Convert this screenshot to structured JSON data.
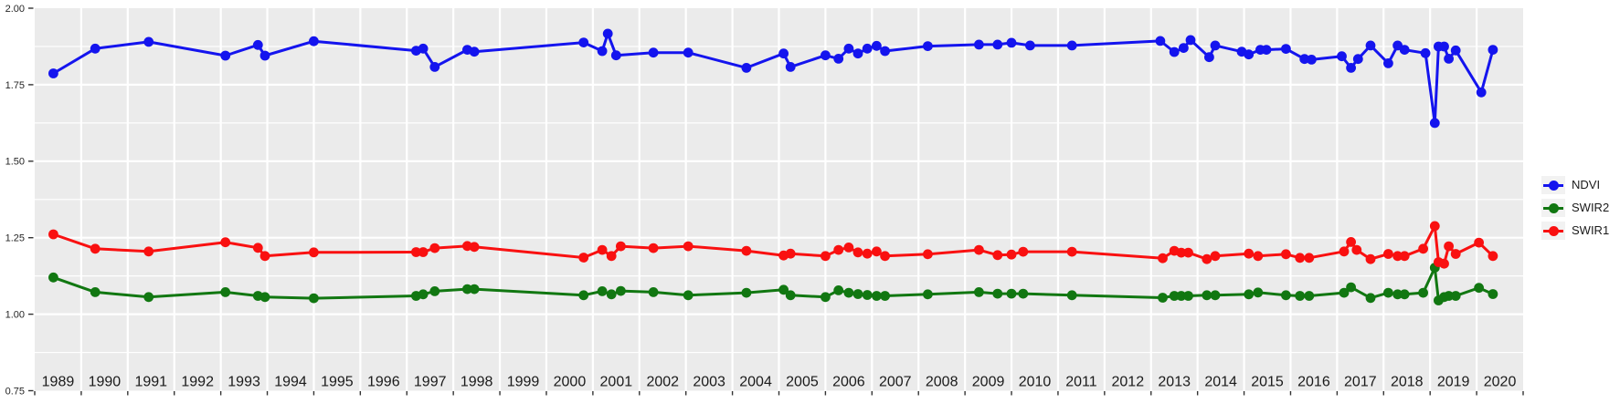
{
  "chart_data": {
    "type": "line",
    "title": "",
    "xlabel": "",
    "ylabel": "",
    "xlim": [
      1989,
      2021
    ],
    "ylim": [
      0.75,
      2.0
    ],
    "x_tick_labels": [
      "1989",
      "1990",
      "1991",
      "1992",
      "1993",
      "1994",
      "1995",
      "1996",
      "1997",
      "1998",
      "1999",
      "2000",
      "2001",
      "2002",
      "2003",
      "2004",
      "2005",
      "2006",
      "2007",
      "2008",
      "2009",
      "2010",
      "2011",
      "2012",
      "2013",
      "2014",
      "2015",
      "2016",
      "2017",
      "2018",
      "2019",
      "2020"
    ],
    "y_ticks": [
      2.0,
      1.75,
      1.5,
      1.25,
      1.0,
      0.75
    ],
    "y_tick_labels": [
      "2.00",
      "1.75",
      "1.50",
      "1.25",
      "1.00",
      "0.75"
    ],
    "grid": {
      "major": true,
      "minor_y": true,
      "grid_color": "#ffffff",
      "panel_bg": "#ebebeb"
    },
    "legend_position": "right",
    "axis_text_color": "#262626",
    "tick_color": "#333333",
    "legend_key_bg": "#f2f2f2",
    "series": [
      {
        "name": "NDVI",
        "color": "#1414ee",
        "points": [
          [
            1989.4,
            1.787
          ],
          [
            1990.3,
            1.868
          ],
          [
            1991.45,
            1.89
          ],
          [
            1993.1,
            1.845
          ],
          [
            1993.8,
            1.88
          ],
          [
            1993.95,
            1.845
          ],
          [
            1995.0,
            1.892
          ],
          [
            1997.2,
            1.861
          ],
          [
            1997.35,
            1.868
          ],
          [
            1997.6,
            1.808
          ],
          [
            1998.3,
            1.864
          ],
          [
            1998.45,
            1.858
          ],
          [
            2000.8,
            1.888
          ],
          [
            2001.2,
            1.86
          ],
          [
            2001.32,
            1.917
          ],
          [
            2001.5,
            1.846
          ],
          [
            2002.3,
            1.855
          ],
          [
            2003.05,
            1.855
          ],
          [
            2004.3,
            1.805
          ],
          [
            2005.1,
            1.852
          ],
          [
            2005.25,
            1.808
          ],
          [
            2006.0,
            1.846
          ],
          [
            2006.28,
            1.835
          ],
          [
            2006.5,
            1.868
          ],
          [
            2006.7,
            1.852
          ],
          [
            2006.9,
            1.868
          ],
          [
            2007.1,
            1.877
          ],
          [
            2007.28,
            1.86
          ],
          [
            2008.2,
            1.876
          ],
          [
            2009.3,
            1.881
          ],
          [
            2009.7,
            1.881
          ],
          [
            2010.0,
            1.887
          ],
          [
            2010.4,
            1.878
          ],
          [
            2011.3,
            1.878
          ],
          [
            2013.2,
            1.893
          ],
          [
            2013.5,
            1.857
          ],
          [
            2013.7,
            1.87
          ],
          [
            2013.85,
            1.896
          ],
          [
            2014.25,
            1.84
          ],
          [
            2014.38,
            1.878
          ],
          [
            2014.95,
            1.858
          ],
          [
            2015.1,
            1.849
          ],
          [
            2015.35,
            1.864
          ],
          [
            2015.48,
            1.864
          ],
          [
            2015.9,
            1.867
          ],
          [
            2016.3,
            1.834
          ],
          [
            2016.45,
            1.832
          ],
          [
            2017.1,
            1.843
          ],
          [
            2017.3,
            1.805
          ],
          [
            2017.45,
            1.834
          ],
          [
            2017.72,
            1.878
          ],
          [
            2018.1,
            1.82
          ],
          [
            2018.3,
            1.878
          ],
          [
            2018.45,
            1.864
          ],
          [
            2018.9,
            1.853
          ],
          [
            2019.1,
            1.625
          ],
          [
            2019.18,
            1.875
          ],
          [
            2019.3,
            1.875
          ],
          [
            2019.4,
            1.835
          ],
          [
            2019.55,
            1.862
          ],
          [
            2020.1,
            1.725
          ],
          [
            2020.35,
            1.864
          ]
        ]
      },
      {
        "name": "SWIR2",
        "color": "#117711",
        "points": [
          [
            1989.4,
            1.12
          ],
          [
            1990.3,
            1.072
          ],
          [
            1991.45,
            1.056
          ],
          [
            1993.1,
            1.072
          ],
          [
            1993.8,
            1.06
          ],
          [
            1993.95,
            1.056
          ],
          [
            1995.0,
            1.052
          ],
          [
            1997.2,
            1.06
          ],
          [
            1997.35,
            1.065
          ],
          [
            1997.6,
            1.075
          ],
          [
            1998.3,
            1.082
          ],
          [
            1998.45,
            1.082
          ],
          [
            2000.8,
            1.062
          ],
          [
            2001.2,
            1.075
          ],
          [
            2001.4,
            1.065
          ],
          [
            2001.6,
            1.076
          ],
          [
            2002.3,
            1.072
          ],
          [
            2003.05,
            1.062
          ],
          [
            2004.3,
            1.07
          ],
          [
            2005.1,
            1.08
          ],
          [
            2005.25,
            1.062
          ],
          [
            2006.0,
            1.056
          ],
          [
            2006.28,
            1.078
          ],
          [
            2006.5,
            1.07
          ],
          [
            2006.7,
            1.066
          ],
          [
            2006.9,
            1.063
          ],
          [
            2007.1,
            1.06
          ],
          [
            2007.28,
            1.06
          ],
          [
            2008.2,
            1.065
          ],
          [
            2009.3,
            1.072
          ],
          [
            2009.7,
            1.067
          ],
          [
            2010.0,
            1.067
          ],
          [
            2010.25,
            1.067
          ],
          [
            2011.3,
            1.062
          ],
          [
            2013.25,
            1.054
          ],
          [
            2013.5,
            1.06
          ],
          [
            2013.65,
            1.06
          ],
          [
            2013.8,
            1.06
          ],
          [
            2014.2,
            1.062
          ],
          [
            2014.38,
            1.062
          ],
          [
            2015.1,
            1.065
          ],
          [
            2015.3,
            1.071
          ],
          [
            2015.9,
            1.062
          ],
          [
            2016.2,
            1.06
          ],
          [
            2016.4,
            1.06
          ],
          [
            2017.15,
            1.07
          ],
          [
            2017.3,
            1.088
          ],
          [
            2017.72,
            1.053
          ],
          [
            2018.1,
            1.07
          ],
          [
            2018.3,
            1.065
          ],
          [
            2018.45,
            1.065
          ],
          [
            2018.85,
            1.07
          ],
          [
            2019.1,
            1.152
          ],
          [
            2019.18,
            1.045
          ],
          [
            2019.3,
            1.056
          ],
          [
            2019.4,
            1.06
          ],
          [
            2019.55,
            1.06
          ],
          [
            2020.05,
            1.086
          ],
          [
            2020.35,
            1.066
          ]
        ]
      },
      {
        "name": "SWIR1",
        "color": "#f91010",
        "points": [
          [
            1989.4,
            1.261
          ],
          [
            1990.3,
            1.214
          ],
          [
            1991.45,
            1.205
          ],
          [
            1993.1,
            1.235
          ],
          [
            1993.8,
            1.217
          ],
          [
            1993.95,
            1.19
          ],
          [
            1995.0,
            1.202
          ],
          [
            1997.2,
            1.203
          ],
          [
            1997.35,
            1.203
          ],
          [
            1997.6,
            1.216
          ],
          [
            1998.3,
            1.223
          ],
          [
            1998.45,
            1.22
          ],
          [
            2000.8,
            1.185
          ],
          [
            2001.2,
            1.21
          ],
          [
            2001.4,
            1.19
          ],
          [
            2001.6,
            1.222
          ],
          [
            2002.3,
            1.216
          ],
          [
            2003.05,
            1.222
          ],
          [
            2004.3,
            1.207
          ],
          [
            2005.1,
            1.192
          ],
          [
            2005.25,
            1.198
          ],
          [
            2006.0,
            1.19
          ],
          [
            2006.28,
            1.21
          ],
          [
            2006.5,
            1.218
          ],
          [
            2006.7,
            1.202
          ],
          [
            2006.9,
            1.198
          ],
          [
            2007.1,
            1.205
          ],
          [
            2007.28,
            1.19
          ],
          [
            2008.2,
            1.196
          ],
          [
            2009.3,
            1.21
          ],
          [
            2009.7,
            1.193
          ],
          [
            2010.0,
            1.195
          ],
          [
            2010.25,
            1.204
          ],
          [
            2011.3,
            1.204
          ],
          [
            2013.25,
            1.183
          ],
          [
            2013.5,
            1.207
          ],
          [
            2013.65,
            1.201
          ],
          [
            2013.8,
            1.201
          ],
          [
            2014.2,
            1.18
          ],
          [
            2014.38,
            1.19
          ],
          [
            2015.1,
            1.198
          ],
          [
            2015.3,
            1.19
          ],
          [
            2015.9,
            1.196
          ],
          [
            2016.2,
            1.184
          ],
          [
            2016.4,
            1.184
          ],
          [
            2017.15,
            1.205
          ],
          [
            2017.3,
            1.236
          ],
          [
            2017.42,
            1.21
          ],
          [
            2017.72,
            1.18
          ],
          [
            2018.1,
            1.197
          ],
          [
            2018.3,
            1.19
          ],
          [
            2018.45,
            1.19
          ],
          [
            2018.85,
            1.214
          ],
          [
            2019.1,
            1.288
          ],
          [
            2019.18,
            1.17
          ],
          [
            2019.3,
            1.165
          ],
          [
            2019.4,
            1.222
          ],
          [
            2019.55,
            1.197
          ],
          [
            2020.05,
            1.234
          ],
          [
            2020.35,
            1.19
          ]
        ]
      }
    ]
  },
  "legend": {
    "items": [
      {
        "label": "NDVI"
      },
      {
        "label": "SWIR2"
      },
      {
        "label": "SWIR1"
      }
    ]
  }
}
